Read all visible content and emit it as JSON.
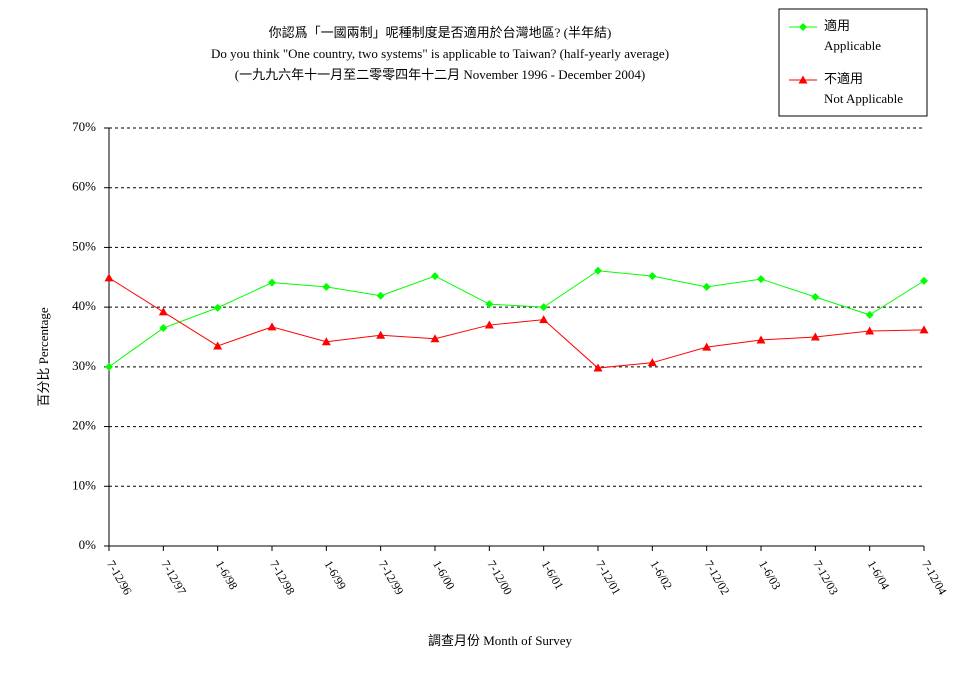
{
  "chart_data": {
    "type": "line",
    "title": "你認爲「一國兩制」呢種制度是否適用於台灣地區? (半年結)",
    "subtitle": "Do you think \"One country, two systems\" is applicable to Taiwan? (half-yearly average)",
    "subtitle2": "(一九九六年十一月至二零零四年十二月 November 1996 - December 2004)",
    "x_label": "調查月份 Month of Survey",
    "y_label": "百分比 Percentage",
    "categories": [
      "7-12/96",
      "7-12/97",
      "1-6/98",
      "7-12/98",
      "1-6/99",
      "7-12/99",
      "1-6/00",
      "7-12/00",
      "1-6/01",
      "7-12/01",
      "1-6/02",
      "7-12/02",
      "1-6/03",
      "7-12/03",
      "1-6/04",
      "7-12/04"
    ],
    "series": [
      {
        "name": "適用",
        "name_en": "Applicable",
        "color": "#00ff00",
        "marker": "diamond",
        "values": [
          30.0,
          36.5,
          39.9,
          44.1,
          43.4,
          41.9,
          45.2,
          40.5,
          40.0,
          46.1,
          45.2,
          43.4,
          44.7,
          41.7,
          38.7,
          44.4
        ]
      },
      {
        "name": "不適用",
        "name_en": "Not Applicable",
        "color": "#ff0000",
        "marker": "triangle",
        "values": [
          44.9,
          39.2,
          33.5,
          36.7,
          34.2,
          35.3,
          34.7,
          37.0,
          37.9,
          29.8,
          30.7,
          33.3,
          34.5,
          35.0,
          36.0,
          36.2
        ]
      }
    ],
    "ylim": [
      0,
      70
    ],
    "yticks": [
      {
        "value": 0,
        "label": "0%"
      },
      {
        "value": 10,
        "label": "10%"
      },
      {
        "value": 20,
        "label": "20%"
      },
      {
        "value": 30,
        "label": "30%"
      },
      {
        "value": 40,
        "label": "40%"
      },
      {
        "value": 50,
        "label": "50%"
      },
      {
        "value": 60,
        "label": "60%"
      },
      {
        "value": 70,
        "label": "70%"
      }
    ],
    "grid": true,
    "legend": "top-right"
  }
}
